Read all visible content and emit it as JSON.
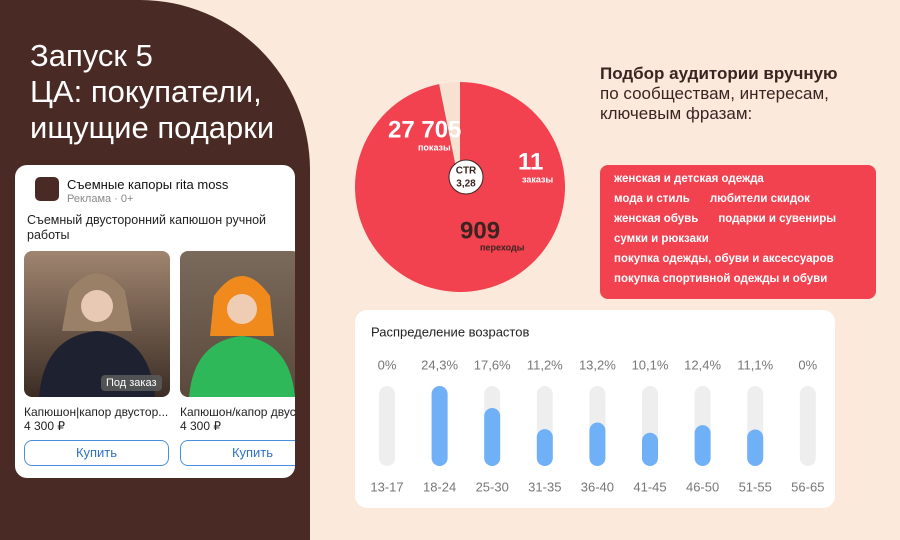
{
  "title": [
    "Запуск 5",
    "ЦА: покупатели,",
    "ищущие подарки"
  ],
  "ad": {
    "brand": "Съемные капоры rita moss",
    "meta": "Реклама · 0+",
    "description": "Съемный двусторонний капюшон ручной работы",
    "products": [
      {
        "name": "Капюшон|капор двустор...",
        "price": "4 300 ₽",
        "badge": "Под заказ",
        "button": "Купить"
      },
      {
        "name": "Капюшон/капор двус",
        "price": "4 300 ₽",
        "button": "Купить"
      }
    ]
  },
  "audience": {
    "heading": "Подбор аудитории вручную",
    "subheading": "по сообществам, интересам, ключевым фразам:",
    "tags": [
      "женская и детская одежда",
      "мода и стиль",
      "любители скидок",
      "женская обувь",
      "подарки и сувениры",
      "сумки и рюкзаки",
      "покупка одежды, обуви и аксессуаров",
      "покупка спортивной одежды и обуви"
    ]
  },
  "chart_data": [
    {
      "type": "pie",
      "categories": [
        "показы",
        "заказы",
        "переходы"
      ],
      "values": [
        27705,
        11,
        909
      ],
      "value_labels": [
        "27 705",
        "11",
        "909"
      ],
      "colors": [
        "#f2414f",
        "#4a2a25",
        "#f7e1d1"
      ],
      "center_label": "CTR",
      "center_value": "3,28"
    },
    {
      "type": "bar",
      "title": "Распределение возрастов",
      "categories": [
        "13-17",
        "18-24",
        "25-30",
        "31-35",
        "36-40",
        "41-45",
        "46-50",
        "51-55",
        "56-65"
      ],
      "values": [
        0,
        24.3,
        17.6,
        11.2,
        13.2,
        10.1,
        12.4,
        11.1,
        0
      ],
      "value_labels": [
        "0%",
        "24,3%",
        "17,6%",
        "11,2%",
        "13,2%",
        "10,1%",
        "12,4%",
        "11,1%",
        "0%"
      ],
      "color": "#6fb0f6",
      "ylim": [
        0,
        24.3
      ]
    }
  ]
}
